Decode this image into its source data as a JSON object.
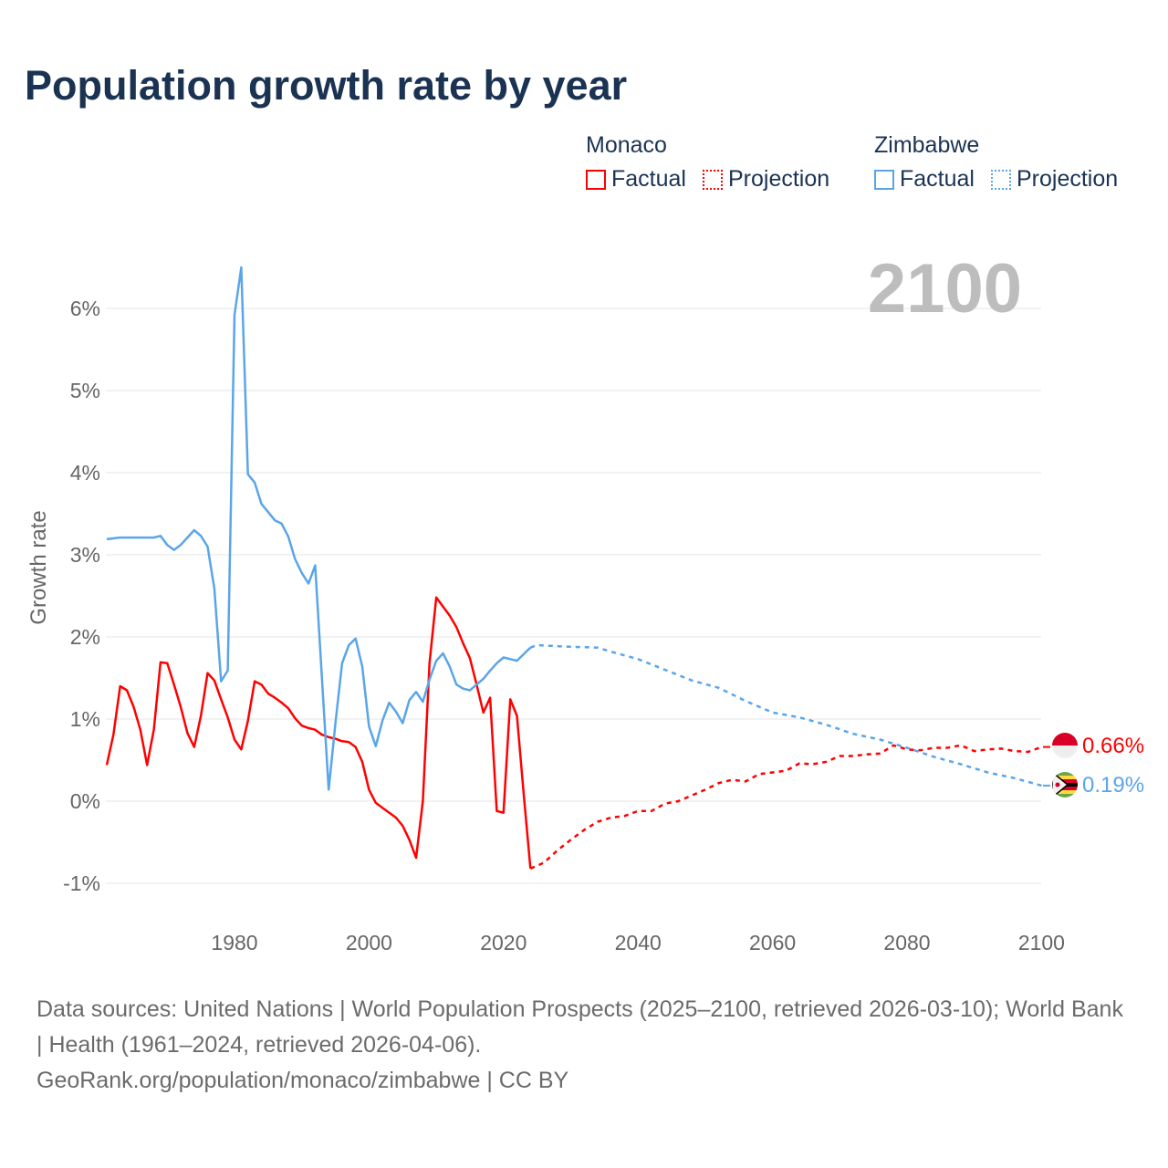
{
  "title": "Population growth rate by year",
  "legend": [
    {
      "country": "Monaco",
      "factual_label": "Factual",
      "projection_label": "Projection",
      "color": "#ff0000"
    },
    {
      "country": "Zimbabwe",
      "factual_label": "Factual",
      "projection_label": "Projection",
      "color": "#5aa5ea"
    }
  ],
  "year_watermark": "2100",
  "end_labels": {
    "monaco": "0.66%",
    "zimbabwe": "0.19%"
  },
  "footer": {
    "sources": "Data sources: United Nations | World Population Prospects (2025–2100, retrieved 2026-03-10); World Bank | Health (1961–2024, retrieved 2026-04-06).",
    "credit": "GeoRank.org/population/monaco/zimbabwe | CC BY"
  },
  "chart_data": {
    "type": "line",
    "title": "Population growth rate by year",
    "xlabel": "",
    "ylabel": "Growth rate",
    "xlim": [
      1961,
      2100
    ],
    "ylim": [
      -1.2,
      6.8
    ],
    "x_ticks": [
      "1980",
      "2000",
      "2020",
      "2040",
      "2060",
      "2080",
      "2100"
    ],
    "y_ticks": [
      "-1%",
      "0%",
      "1%",
      "2%",
      "3%",
      "4%",
      "5%",
      "6%"
    ],
    "grid": true,
    "series": [
      {
        "name": "Monaco Factual",
        "color": "#ff0000",
        "style": "solid",
        "x": [
          1961,
          1962,
          1963,
          1964,
          1965,
          1966,
          1967,
          1968,
          1969,
          1970,
          1971,
          1972,
          1973,
          1974,
          1975,
          1976,
          1977,
          1978,
          1979,
          1980,
          1981,
          1982,
          1983,
          1984,
          1985,
          1986,
          1987,
          1988,
          1989,
          1990,
          1991,
          1992,
          1993,
          1994,
          1995,
          1996,
          1997,
          1998,
          1999,
          2000,
          2001,
          2002,
          2003,
          2004,
          2005,
          2006,
          2007,
          2008,
          2009,
          2010,
          2011,
          2012,
          2013,
          2014,
          2015,
          2016,
          2017,
          2018,
          2019,
          2020,
          2021,
          2022,
          2023,
          2024
        ],
        "y": [
          0.44,
          0.81,
          1.4,
          1.35,
          1.15,
          0.87,
          0.44,
          0.87,
          1.69,
          1.68,
          1.42,
          1.15,
          0.83,
          0.66,
          1.04,
          1.56,
          1.47,
          1.24,
          1.02,
          0.75,
          0.63,
          0.98,
          1.46,
          1.42,
          1.31,
          1.26,
          1.2,
          1.13,
          1.01,
          0.92,
          0.89,
          0.87,
          0.81,
          0.78,
          0.76,
          0.73,
          0.72,
          0.66,
          0.48,
          0.14,
          -0.02,
          -0.08,
          -0.14,
          -0.2,
          -0.3,
          -0.47,
          -0.69,
          0.0,
          1.68,
          2.48,
          2.37,
          2.26,
          2.12,
          1.92,
          1.74,
          1.42,
          1.08,
          1.26,
          -0.12,
          -0.14,
          1.24,
          1.04,
          0.09,
          -0.82
        ]
      },
      {
        "name": "Monaco Projection",
        "color": "#ff0000",
        "style": "dotted",
        "x": [
          2024,
          2026,
          2028,
          2030,
          2032,
          2034,
          2036,
          2038,
          2040,
          2042,
          2044,
          2046,
          2048,
          2050,
          2052,
          2054,
          2056,
          2058,
          2060,
          2062,
          2064,
          2066,
          2068,
          2070,
          2072,
          2074,
          2076,
          2078,
          2080,
          2082,
          2084,
          2086,
          2088,
          2090,
          2092,
          2094,
          2096,
          2098,
          2100
        ],
        "y": [
          -0.82,
          -0.75,
          -0.6,
          -0.47,
          -0.35,
          -0.25,
          -0.2,
          -0.18,
          -0.12,
          -0.12,
          -0.03,
          0.0,
          0.07,
          0.14,
          0.22,
          0.26,
          0.24,
          0.33,
          0.35,
          0.37,
          0.46,
          0.45,
          0.48,
          0.55,
          0.55,
          0.57,
          0.58,
          0.68,
          0.63,
          0.62,
          0.65,
          0.65,
          0.68,
          0.61,
          0.63,
          0.64,
          0.61,
          0.6,
          0.66
        ]
      },
      {
        "name": "Zimbabwe Factual",
        "color": "#5aa5ea",
        "style": "solid",
        "x": [
          1961,
          1962,
          1963,
          1964,
          1965,
          1966,
          1967,
          1968,
          1969,
          1970,
          1971,
          1972,
          1973,
          1974,
          1975,
          1976,
          1977,
          1978,
          1979,
          1980,
          1981,
          1982,
          1983,
          1984,
          1985,
          1986,
          1987,
          1988,
          1989,
          1990,
          1991,
          1992,
          1993,
          1994,
          1995,
          1996,
          1997,
          1998,
          1999,
          2000,
          2001,
          2002,
          2003,
          2004,
          2005,
          2006,
          2007,
          2008,
          2009,
          2010,
          2011,
          2012,
          2013,
          2014,
          2015,
          2016,
          2017,
          2018,
          2019,
          2020,
          2021,
          2022,
          2023,
          2024
        ],
        "y": [
          3.19,
          3.2,
          3.21,
          3.21,
          3.21,
          3.21,
          3.21,
          3.21,
          3.23,
          3.12,
          3.06,
          3.12,
          3.21,
          3.3,
          3.23,
          3.1,
          2.59,
          1.46,
          1.59,
          5.92,
          6.5,
          3.98,
          3.88,
          3.62,
          3.52,
          3.42,
          3.38,
          3.22,
          2.95,
          2.78,
          2.65,
          2.87,
          1.5,
          0.14,
          0.95,
          1.68,
          1.9,
          1.98,
          1.64,
          0.91,
          0.67,
          0.98,
          1.2,
          1.09,
          0.95,
          1.23,
          1.33,
          1.21,
          1.48,
          1.71,
          1.8,
          1.64,
          1.42,
          1.37,
          1.35,
          1.42,
          1.49,
          1.59,
          1.68,
          1.75,
          1.73,
          1.71,
          1.79,
          1.87
        ]
      },
      {
        "name": "Zimbabwe Projection",
        "color": "#5aa5ea",
        "style": "dotted",
        "x": [
          2024,
          2025,
          2030,
          2034,
          2036,
          2040,
          2044,
          2048,
          2052,
          2056,
          2060,
          2064,
          2068,
          2072,
          2076,
          2080,
          2084,
          2088,
          2092,
          2096,
          2100
        ],
        "y": [
          1.87,
          1.9,
          1.88,
          1.87,
          1.82,
          1.73,
          1.6,
          1.47,
          1.38,
          1.22,
          1.08,
          1.02,
          0.93,
          0.82,
          0.75,
          0.65,
          0.54,
          0.45,
          0.35,
          0.28,
          0.19
        ]
      }
    ],
    "end_values": {
      "Monaco": 0.66,
      "Zimbabwe": 0.19
    },
    "legend_position": "top-right"
  }
}
